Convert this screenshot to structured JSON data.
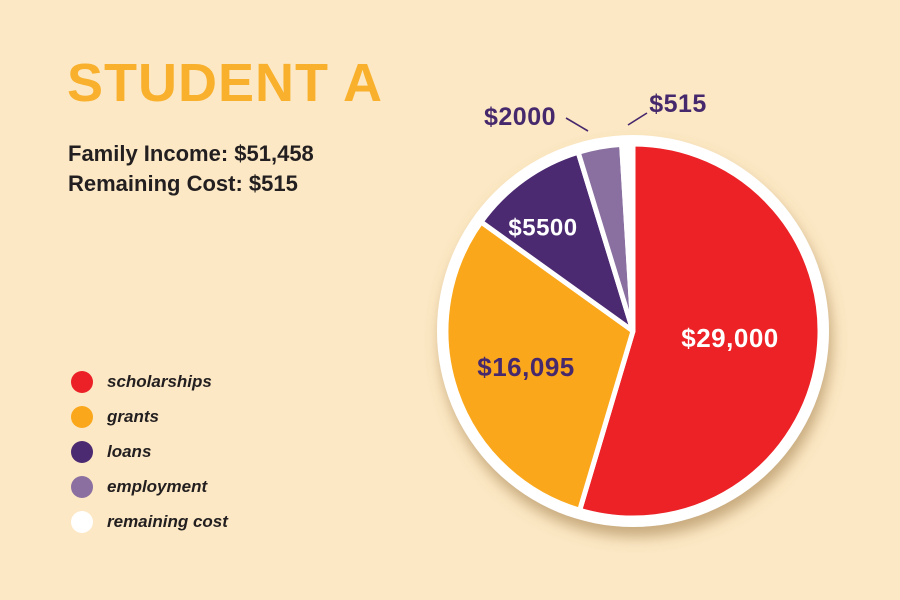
{
  "title": "STUDENT A",
  "info": {
    "family_income": "Family Income: $51,458",
    "remaining_cost": "Remaining Cost: $515"
  },
  "colors": {
    "background": "#FCE8C4",
    "title_text": "#F9B02C",
    "body_text": "#231F20",
    "callout_text": "#46286C",
    "slice_divider": "#FFFFFF"
  },
  "chart_data": {
    "type": "pie",
    "title": "STUDENT A",
    "direction": "clockwise",
    "start_angle_deg": 0,
    "legend_position": "bottom-left",
    "slices": [
      {
        "label": "scholarships",
        "value": 29000,
        "display": "$29,000",
        "color": "#EC2127",
        "label_color": "#FFFFFF",
        "label_placement": "inside"
      },
      {
        "label": "grants",
        "value": 16095,
        "display": "$16,095",
        "color": "#FAA71B",
        "label_color": "#46286C",
        "label_placement": "inside"
      },
      {
        "label": "loans",
        "value": 5500,
        "display": "$5500",
        "color": "#4C2A72",
        "label_color": "#FFFFFF",
        "label_placement": "inside"
      },
      {
        "label": "employment",
        "value": 2000,
        "display": "$2000",
        "color": "#8A6FA0",
        "label_color": "#46286C",
        "label_placement": "outside"
      },
      {
        "label": "remaining cost",
        "value": 515,
        "display": "$515",
        "color": "#FFFFFF",
        "label_color": "#46286C",
        "label_placement": "outside"
      }
    ]
  }
}
